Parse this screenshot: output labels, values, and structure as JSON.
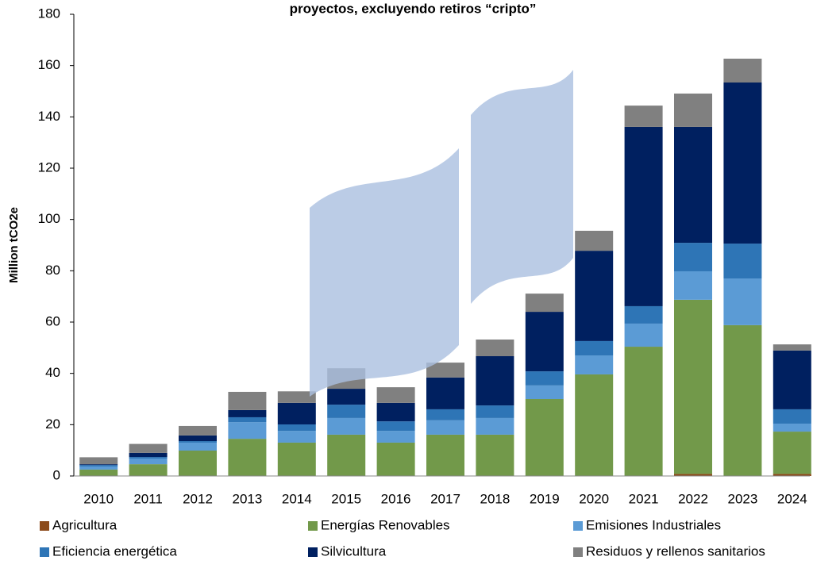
{
  "chart_data": {
    "type": "stacked_bar",
    "title": "proyectos, excluyendo retiros “cripto”",
    "y_label": "Million tCO2e",
    "categories": [
      "2010",
      "2011",
      "2012",
      "2013",
      "2014",
      "2015",
      "2016",
      "2017",
      "2018",
      "2019",
      "2020",
      "2021",
      "2022",
      "2023",
      "2024"
    ],
    "series": [
      {
        "name": "Agricultura",
        "color": "#8c4a1a",
        "values": [
          0,
          0,
          0,
          0,
          0,
          0,
          0,
          0,
          0,
          0,
          0,
          0,
          0.8,
          0,
          0.8
        ]
      },
      {
        "name": "Energías Renovables",
        "color": "#72994a",
        "values": [
          2.5,
          4.6,
          9.9,
          14.5,
          13,
          16.1,
          13,
          16.1,
          16.1,
          30,
          39.6,
          50.4,
          67.9,
          58.8,
          16.5
        ]
      },
      {
        "name": "Emisiones Industriales",
        "color": "#5b9bd5",
        "values": [
          1.2,
          2.2,
          3.1,
          6.5,
          4.6,
          6.5,
          4.6,
          5.6,
          6.5,
          5.3,
          7.4,
          9,
          11.1,
          18.2,
          3.1
        ]
      },
      {
        "name": "Eficiencia energética",
        "color": "#2e75b6",
        "values": [
          0.6,
          0.6,
          0.6,
          1.9,
          2.5,
          5.2,
          3.7,
          4.3,
          4.9,
          5.5,
          5.6,
          6.8,
          11.1,
          13.6,
          5.6
        ]
      },
      {
        "name": "Silvicultura",
        "color": "#002060",
        "values": [
          0.3,
          1.6,
          2.2,
          2.8,
          8.4,
          6.2,
          7.2,
          12.4,
          19.2,
          23.2,
          35.2,
          69.9,
          45.2,
          62.8,
          22.9
        ]
      },
      {
        "name": "Residuos y rellenos sanitarios",
        "color": "#808080",
        "values": [
          2.7,
          3.5,
          3.7,
          7.1,
          4.5,
          8,
          6.1,
          5.8,
          6.5,
          7.1,
          7.8,
          8.3,
          13,
          9.3,
          2.4
        ]
      }
    ],
    "ylim": [
      0,
      180
    ],
    "yticks": [
      0,
      20,
      40,
      60,
      80,
      100,
      120,
      140,
      160,
      180
    ]
  }
}
